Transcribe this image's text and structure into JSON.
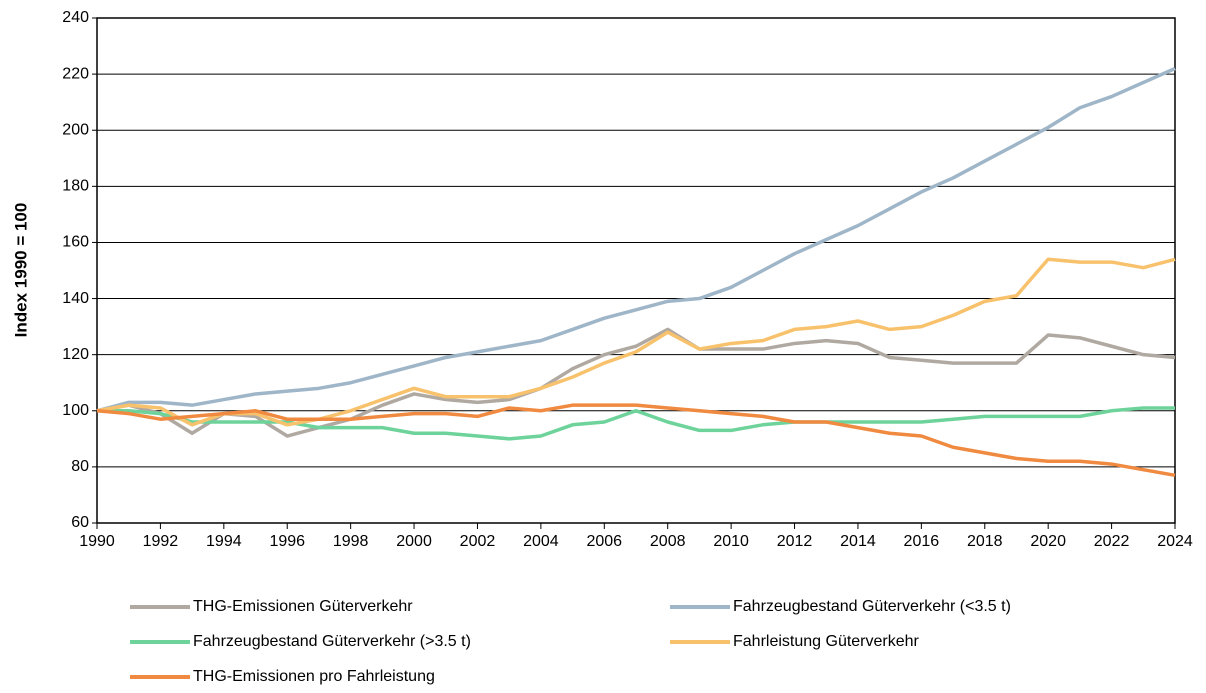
{
  "chart_data": {
    "type": "line",
    "y_label": "Index 1990 = 100",
    "x": [
      1990,
      1991,
      1992,
      1993,
      1994,
      1995,
      1996,
      1997,
      1998,
      1999,
      2000,
      2001,
      2002,
      2003,
      2004,
      2005,
      2006,
      2007,
      2008,
      2009,
      2010,
      2011,
      2012,
      2013,
      2014,
      2015,
      2016,
      2017,
      2018,
      2019,
      2020,
      2021,
      2022,
      2023,
      2024
    ],
    "xlim": [
      1990,
      2024
    ],
    "xticks": [
      1990,
      1992,
      1994,
      1996,
      1998,
      2000,
      2002,
      2004,
      2006,
      2008,
      2010,
      2012,
      2014,
      2016,
      2018,
      2020,
      2022,
      2024
    ],
    "ylim": [
      60,
      240
    ],
    "yticks": [
      60,
      80,
      100,
      120,
      140,
      160,
      180,
      200,
      220,
      240
    ],
    "grid": true,
    "legend": "bottom",
    "series": [
      {
        "name": "THG-Emissionen Güterverkehr",
        "color": "#b0a9a2",
        "values": [
          100,
          102,
          99,
          92,
          99,
          98,
          91,
          94,
          97,
          102,
          106,
          104,
          103,
          104,
          108,
          115,
          120,
          123,
          129,
          122,
          122,
          122,
          124,
          125,
          124,
          119,
          118,
          117,
          117,
          117,
          127,
          126,
          123,
          120,
          119
        ]
      },
      {
        "name": "Fahrzeugbestand Güterverkehr (<3.5 t)",
        "color": "#9fb6c9",
        "values": [
          100,
          103,
          103,
          102,
          104,
          106,
          107,
          108,
          110,
          113,
          116,
          119,
          121,
          123,
          125,
          129,
          133,
          136,
          139,
          140,
          144,
          150,
          156,
          161,
          166,
          172,
          178,
          183,
          189,
          195,
          201,
          208,
          212,
          217,
          222
        ]
      },
      {
        "name": "Fahrzeugbestand Güterverkehr (>3.5 t)",
        "color": "#6dd39a",
        "values": [
          100,
          100,
          99,
          96,
          96,
          96,
          96,
          94,
          94,
          94,
          92,
          92,
          91,
          90,
          91,
          95,
          96,
          100,
          96,
          93,
          93,
          95,
          96,
          96,
          96,
          96,
          96,
          97,
          98,
          98,
          98,
          98,
          100,
          101,
          101
        ]
      },
      {
        "name": "Fahrleistung Güterverkehr",
        "color": "#f8c26d",
        "values": [
          100,
          102,
          101,
          95,
          99,
          99,
          95,
          97,
          100,
          104,
          108,
          105,
          105,
          105,
          108,
          112,
          117,
          121,
          128,
          122,
          124,
          125,
          129,
          130,
          132,
          129,
          130,
          134,
          139,
          141,
          154,
          153,
          153,
          151,
          154
        ]
      },
      {
        "name": "THG-Emissionen pro Fahrleistung",
        "color": "#f08a40",
        "values": [
          100,
          99,
          97,
          98,
          99,
          100,
          97,
          97,
          97,
          98,
          99,
          99,
          98,
          101,
          100,
          102,
          102,
          102,
          101,
          100,
          99,
          98,
          96,
          96,
          94,
          92,
          91,
          87,
          85,
          83,
          82,
          82,
          81,
          79,
          77
        ]
      }
    ]
  }
}
